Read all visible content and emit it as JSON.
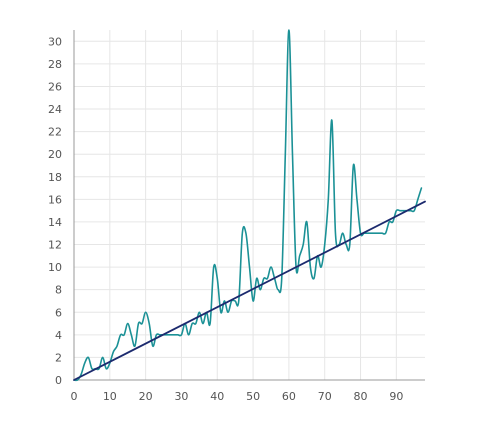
{
  "chart_data": {
    "type": "line",
    "title": "",
    "xlabel": "",
    "ylabel": "",
    "xlim": [
      0,
      98
    ],
    "ylim": [
      0,
      31
    ],
    "x_ticks": [
      0,
      10,
      20,
      30,
      40,
      50,
      60,
      70,
      80,
      90
    ],
    "y_ticks": [
      0,
      2,
      4,
      6,
      8,
      10,
      12,
      14,
      16,
      18,
      20,
      22,
      24,
      26,
      28,
      30
    ],
    "grid": true,
    "legend": "none",
    "series": [
      {
        "style": "smooth",
        "color": "#1b9196",
        "points": [
          [
            0,
            0
          ],
          [
            1,
            0
          ],
          [
            2,
            0.5
          ],
          [
            3,
            1.5
          ],
          [
            4,
            2
          ],
          [
            5,
            1
          ],
          [
            6,
            1
          ],
          [
            7,
            1
          ],
          [
            8,
            2
          ],
          [
            9,
            1
          ],
          [
            10,
            1.5
          ],
          [
            11,
            2.5
          ],
          [
            12,
            3
          ],
          [
            13,
            4
          ],
          [
            14,
            4
          ],
          [
            15,
            5
          ],
          [
            16,
            4
          ],
          [
            17,
            3
          ],
          [
            18,
            5
          ],
          [
            19,
            5
          ],
          [
            20,
            6
          ],
          [
            21,
            5
          ],
          [
            22,
            3
          ],
          [
            23,
            4
          ],
          [
            24,
            4
          ],
          [
            25,
            4
          ],
          [
            26,
            4
          ],
          [
            27,
            4
          ],
          [
            28,
            4
          ],
          [
            29,
            4
          ],
          [
            30,
            4
          ],
          [
            31,
            5
          ],
          [
            32,
            4
          ],
          [
            33,
            5
          ],
          [
            34,
            5
          ],
          [
            35,
            6
          ],
          [
            36,
            5
          ],
          [
            37,
            6
          ],
          [
            38,
            5
          ],
          [
            39,
            10
          ],
          [
            40,
            9
          ],
          [
            41,
            6
          ],
          [
            42,
            7
          ],
          [
            43,
            6
          ],
          [
            44,
            7
          ],
          [
            45,
            7
          ],
          [
            46,
            7
          ],
          [
            47,
            13
          ],
          [
            48,
            13
          ],
          [
            49,
            10
          ],
          [
            50,
            7
          ],
          [
            51,
            9
          ],
          [
            52,
            8
          ],
          [
            53,
            9
          ],
          [
            54,
            9
          ],
          [
            55,
            10
          ],
          [
            56,
            9
          ],
          [
            57,
            8
          ],
          [
            58,
            9
          ],
          [
            59,
            20
          ],
          [
            60,
            31
          ],
          [
            61,
            20
          ],
          [
            62,
            10
          ],
          [
            63,
            11
          ],
          [
            64,
            12
          ],
          [
            65,
            14
          ],
          [
            66,
            10
          ],
          [
            67,
            9
          ],
          [
            68,
            11
          ],
          [
            69,
            10
          ],
          [
            70,
            12
          ],
          [
            71,
            16
          ],
          [
            72,
            23
          ],
          [
            73,
            13
          ],
          [
            74,
            12
          ],
          [
            75,
            13
          ],
          [
            76,
            12
          ],
          [
            77,
            12
          ],
          [
            78,
            19
          ],
          [
            79,
            16
          ],
          [
            80,
            13
          ],
          [
            81,
            13
          ],
          [
            82,
            13
          ],
          [
            83,
            13
          ],
          [
            84,
            13
          ],
          [
            85,
            13
          ],
          [
            86,
            13
          ],
          [
            87,
            13
          ],
          [
            88,
            14
          ],
          [
            89,
            14
          ],
          [
            90,
            15
          ],
          [
            91,
            15
          ],
          [
            92,
            15
          ],
          [
            93,
            15
          ],
          [
            94,
            15
          ],
          [
            95,
            15
          ],
          [
            96,
            16
          ],
          [
            97,
            17
          ]
        ]
      },
      {
        "style": "straight",
        "color": "#1c2a6e",
        "points": [
          [
            0,
            0
          ],
          [
            98,
            15.8
          ]
        ]
      }
    ]
  }
}
